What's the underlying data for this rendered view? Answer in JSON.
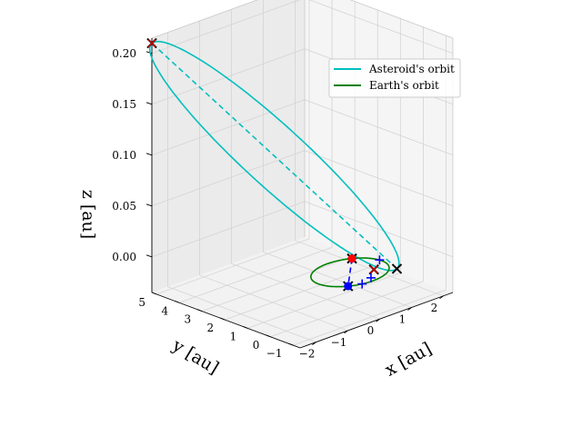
{
  "chart_data": {
    "type": "line",
    "projection": "3d",
    "axes": {
      "x": {
        "label": "x [au]",
        "ticks": [
          -2,
          -1,
          0,
          1,
          2
        ],
        "range": [
          -2.5,
          2.3
        ]
      },
      "y": {
        "label": "y [au]",
        "ticks": [
          -1,
          0,
          1,
          2,
          3,
          4,
          5
        ],
        "range": [
          -1.3,
          5.2
        ]
      },
      "z": {
        "label": "z [au]",
        "ticks": [
          0.0,
          0.05,
          0.1,
          0.15,
          0.2
        ],
        "tick_labels": [
          "0.00",
          "0.05",
          "0.10",
          "0.15",
          "0.20"
        ],
        "range": [
          -0.035,
          0.215
        ]
      }
    },
    "grid": true,
    "legend": {
      "placement": "top-right",
      "entries": [
        {
          "label": "Asteroid's orbit",
          "color": "#00bfbf"
        },
        {
          "label": "Earth's orbit",
          "color": "#008000"
        }
      ]
    },
    "series": [
      {
        "name": "Asteroid's orbit",
        "kind": "ellipse",
        "color": "#00bfbf",
        "perihelion": [
          0.9,
          -0.8,
          0.0
        ],
        "aphelion": [
          -2.5,
          5.2,
          0.21
        ],
        "semi_minor_direction": [
          0.869,
          0.495,
          0.0
        ],
        "semi_minor": 1.4
      },
      {
        "name": "Earth's orbit",
        "kind": "circle",
        "color": "#008000",
        "center": [
          0,
          0,
          0
        ],
        "radius": 1
      }
    ],
    "lines": [
      {
        "style": "dashed",
        "color": "#00bfbf",
        "from": [
          0.9,
          -0.8,
          0.0
        ],
        "to": [
          -2.5,
          5.2,
          0.21
        ]
      },
      {
        "style": "dashed",
        "color": "#0000ff",
        "from": [
          0.62,
          0.78,
          0.0
        ],
        "to": [
          -0.62,
          -0.78,
          0.0
        ]
      }
    ],
    "markers": [
      {
        "symbol": "x",
        "color": "#000000",
        "points": [
          [
            -2.5,
            5.2,
            0.21
          ],
          [
            0.9,
            -0.8,
            0.0
          ],
          [
            -0.62,
            -0.78,
            0.0
          ],
          [
            0.62,
            0.78,
            0.0
          ],
          [
            0.5,
            -0.35,
            0.0
          ]
        ]
      },
      {
        "symbol": "x",
        "color": "#cc0000",
        "points": [
          [
            -2.5,
            5.2,
            0.21
          ],
          [
            0.5,
            -0.35,
            0.0
          ]
        ]
      },
      {
        "symbol": "+",
        "color": "#0000ff",
        "points": [
          [
            0.62,
            0.78,
            0.0
          ],
          [
            1.0,
            0.1,
            0.0
          ],
          [
            0.1,
            -0.78,
            0.0
          ],
          [
            -0.3,
            -0.95,
            0.0
          ]
        ]
      },
      {
        "symbol": "o",
        "color": "#ff0000",
        "points": [
          [
            0.62,
            0.78,
            0.0
          ]
        ]
      },
      {
        "symbol": "o",
        "color": "#0000ff",
        "points": [
          [
            -0.62,
            -0.78,
            0.0
          ]
        ]
      }
    ]
  }
}
